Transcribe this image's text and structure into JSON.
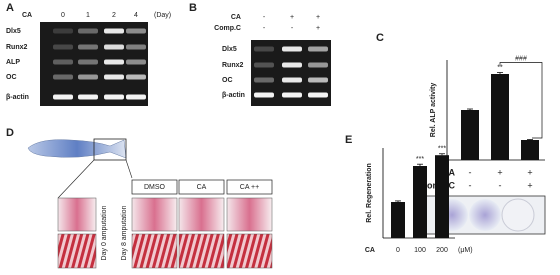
{
  "A": {
    "label": "A",
    "treatment": "CA",
    "days": [
      "0",
      "1",
      "2",
      "4"
    ],
    "unit": "(Day)",
    "genes": [
      "Dlx5",
      "Runx2",
      "ALP",
      "OC",
      "β-actin"
    ]
  },
  "B": {
    "label": "B",
    "rows": [
      {
        "name": "CA",
        "signs": [
          "-",
          "+",
          "+"
        ]
      },
      {
        "name": "Comp.C",
        "signs": [
          "-",
          "-",
          "+"
        ]
      }
    ],
    "genes": [
      "Dlx5",
      "Runx2",
      "OC",
      "β-actin"
    ]
  },
  "C": {
    "label": "C",
    "y_label": "Rel. ALP activity",
    "values": [
      1.0,
      1.72,
      0.4
    ],
    "errors": [
      0.02,
      0.03,
      0.01
    ],
    "ylim": [
      0,
      2
    ],
    "significance": [
      null,
      "**",
      null
    ],
    "comparison": "###",
    "rows": [
      {
        "name": "CA",
        "signs": [
          "-",
          "+",
          "+"
        ]
      },
      {
        "name": "Comp.C",
        "signs": [
          "-",
          "-",
          "+"
        ]
      }
    ]
  },
  "D": {
    "label": "D",
    "conditions": [
      "DMSO",
      "CA",
      "CA ++"
    ],
    "timepoints": [
      "Day 0 amputation",
      "Day 8 amputation"
    ]
  },
  "E": {
    "label": "E",
    "y_label": "Rel. Regeneration",
    "x_name": "CA",
    "categories": [
      "0",
      "100",
      "200"
    ],
    "unit": "(μM)",
    "values": [
      1.0,
      2.0,
      2.3
    ],
    "errors": [
      0.03,
      0.05,
      0.04
    ],
    "ylim": [
      0,
      2.5
    ],
    "significance": [
      null,
      "***",
      "***"
    ]
  }
}
